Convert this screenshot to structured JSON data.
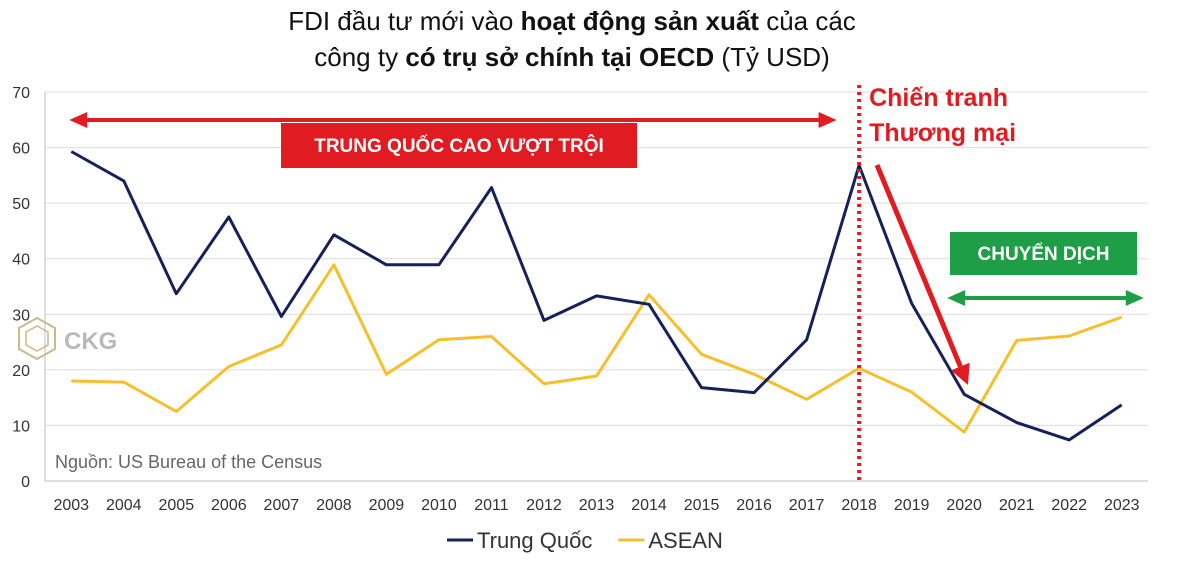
{
  "chart_data": {
    "type": "line",
    "title_line1_pre": "FDI đầu tư mới vào ",
    "title_line1_bold": "hoạt động sản xuất",
    "title_line1_post": " của các",
    "title_line2_pre": "công ty ",
    "title_line2_bold": "có trụ sở chính tại OECD",
    "title_line2_post": " (Tỷ USD)",
    "x": [
      "2003",
      "2004",
      "2005",
      "2006",
      "2007",
      "2008",
      "2009",
      "2010",
      "2011",
      "2012",
      "2013",
      "2014",
      "2015",
      "2016",
      "2017",
      "2018",
      "2019",
      "2020",
      "2021",
      "2022",
      "2023"
    ],
    "ylim": [
      0,
      70
    ],
    "yticks": [
      0,
      10,
      20,
      30,
      40,
      50,
      60,
      70
    ],
    "grid": true,
    "legend_position": "bottom",
    "series": [
      {
        "name": "Trung Quốc",
        "color": "#15225a",
        "values": [
          59.3,
          54.0,
          33.7,
          47.5,
          29.6,
          44.3,
          38.9,
          38.9,
          52.8,
          28.9,
          33.3,
          31.8,
          16.8,
          15.9,
          25.4,
          56.8,
          32.0,
          15.6,
          10.5,
          7.4,
          13.7
        ]
      },
      {
        "name": "ASEAN",
        "color": "#f5c02c",
        "values": [
          18.0,
          17.8,
          12.5,
          20.6,
          24.5,
          38.9,
          19.2,
          25.4,
          26.0,
          17.5,
          18.9,
          33.5,
          22.8,
          19.2,
          14.7,
          20.3,
          16.0,
          8.8,
          25.3,
          26.1,
          29.5
        ]
      }
    ],
    "annotations": {
      "banner_china": "TRUNG QUỐC CAO VƯỢT TRỘI",
      "trade_war_line1": "Chiến tranh",
      "trade_war_line2": "Thương mại",
      "shift": "CHUYỂN DỊCH",
      "source": "Nguồn: US Bureau of the Census",
      "logo": "CKG",
      "trade_war_year": "2018",
      "banner_range": [
        "2003",
        "2017"
      ],
      "shift_range": [
        "2020",
        "2023"
      ],
      "red_color": "#e11b22",
      "green_color": "#1f9e48"
    }
  }
}
